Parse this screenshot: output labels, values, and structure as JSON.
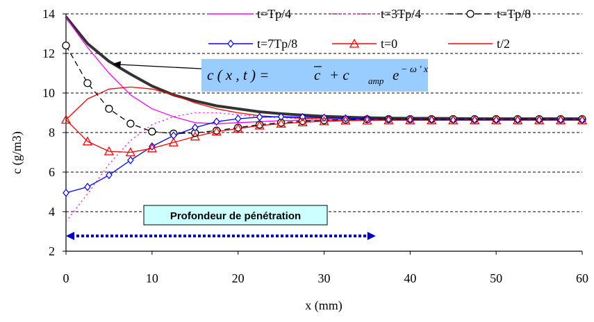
{
  "chart_data": {
    "type": "line",
    "xlabel": "x (mm)",
    "ylabel": "c (g/m3)",
    "xlim": [
      0,
      60
    ],
    "ylim": [
      2,
      14
    ],
    "x_ticks": [
      0,
      10,
      20,
      30,
      40,
      50,
      60
    ],
    "y_ticks": [
      2,
      4,
      6,
      8,
      10,
      12,
      14
    ],
    "grid": "horizontal dashed",
    "legend_position": "top-right",
    "x": [
      0,
      2.5,
      5,
      7.5,
      10,
      12.5,
      15,
      17.5,
      20,
      22.5,
      25,
      27.5,
      30,
      32.5,
      35,
      37.5,
      40,
      42.5,
      45,
      47.5,
      50,
      52.5,
      55,
      57.5,
      60
    ],
    "series": [
      {
        "name": "t=Tp/4",
        "color": "#ff00ff",
        "style": "solid",
        "marker": "none",
        "values": [
          13.8,
          12.3,
          11.0,
          9.9,
          9.2,
          8.8,
          8.5,
          8.45,
          8.5,
          8.55,
          8.6,
          8.62,
          8.62,
          8.63,
          8.63,
          8.63,
          8.63,
          8.63,
          8.63,
          8.63,
          8.63,
          8.63,
          8.63,
          8.63,
          8.63
        ]
      },
      {
        "name": "t=3Tp/4",
        "color": "#ff00ff",
        "style": "dotted",
        "marker": "none",
        "values": [
          3.5,
          4.9,
          6.4,
          7.6,
          8.4,
          8.8,
          9.0,
          9.0,
          8.9,
          8.8,
          8.75,
          8.7,
          8.68,
          8.67,
          8.66,
          8.65,
          8.65,
          8.65,
          8.65,
          8.65,
          8.65,
          8.65,
          8.65,
          8.65,
          8.65
        ]
      },
      {
        "name": "t=Tp/8",
        "color": "#000000",
        "style": "dashed",
        "marker": "circle",
        "values": [
          12.4,
          10.5,
          9.2,
          8.45,
          8.05,
          7.95,
          7.98,
          8.1,
          8.25,
          8.4,
          8.5,
          8.58,
          8.62,
          8.65,
          8.67,
          8.68,
          8.68,
          8.68,
          8.68,
          8.68,
          8.68,
          8.68,
          8.68,
          8.68,
          8.68
        ]
      },
      {
        "name": "t=7Tp/8",
        "color": "#0000ff",
        "style": "solid",
        "marker": "diamond",
        "values": [
          4.95,
          5.25,
          5.85,
          6.6,
          7.3,
          7.85,
          8.25,
          8.55,
          8.7,
          8.78,
          8.8,
          8.78,
          8.75,
          8.72,
          8.7,
          8.68,
          8.67,
          8.66,
          8.65,
          8.65,
          8.65,
          8.65,
          8.65,
          8.65,
          8.65
        ]
      },
      {
        "name": "t=0",
        "color": "#ff0000",
        "style": "solid",
        "marker": "triangle",
        "values": [
          8.65,
          7.55,
          7.05,
          7.0,
          7.2,
          7.5,
          7.8,
          8.05,
          8.2,
          8.35,
          8.45,
          8.52,
          8.57,
          8.6,
          8.61,
          8.62,
          8.62,
          8.62,
          8.62,
          8.62,
          8.62,
          8.62,
          8.62,
          8.62,
          8.62
        ]
      },
      {
        "name": "t/2",
        "color": "#ff0000",
        "style": "solid",
        "marker": "none",
        "values": [
          8.65,
          9.7,
          10.2,
          10.3,
          10.2,
          9.9,
          9.5,
          9.2,
          9.0,
          8.85,
          8.78,
          8.72,
          8.7,
          8.68,
          8.67,
          8.66,
          8.66,
          8.66,
          8.66,
          8.66,
          8.66,
          8.66,
          8.66,
          8.66,
          8.66
        ]
      },
      {
        "name": "",
        "color": "#333333",
        "style": "thick",
        "marker": "none",
        "values": [
          13.85,
          12.5,
          11.6,
          10.95,
          10.35,
          9.9,
          9.6,
          9.35,
          9.2,
          9.05,
          8.95,
          8.88,
          8.82,
          8.78,
          8.75,
          8.73,
          8.72,
          8.72,
          8.71,
          8.7,
          8.7,
          8.7,
          8.7,
          8.7,
          8.7
        ]
      }
    ],
    "annotations": {
      "formula_base": "c ( x , t )  =",
      "formula_cbar": "c",
      "formula_plus": "+  c",
      "formula_sub": "amp",
      "formula_e": "e",
      "formula_exponent": "− ω ' x",
      "formula_box_color": "#99ccff",
      "penetration_label": "Profondeur de pénétration",
      "penetration_box_color": "#ccffff",
      "penetration_arrow_color": "#0000cc",
      "penetration_range": [
        0,
        36
      ]
    }
  }
}
